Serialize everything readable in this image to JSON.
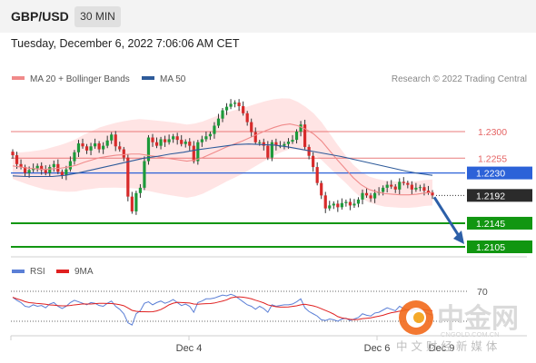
{
  "header": {
    "pair": "GBP/USD",
    "timeframe": "30 MIN",
    "datetime": "Tuesday, December 6, 2022 7:06:06 AM CET"
  },
  "legend": {
    "items": [
      {
        "label": "MA 20 + Bollinger Bands",
        "color": "#f08a8a"
      },
      {
        "label": "MA 50",
        "color": "#2e5b9a"
      }
    ],
    "credit": "Research © 2022 Trading Central"
  },
  "rsi_legend": {
    "items": [
      {
        "label": "RSI",
        "color": "#5b7fd6"
      },
      {
        "label": "9MA",
        "color": "#e02020"
      }
    ]
  },
  "watermark": {
    "brand": "中金网",
    "url": "CNGOLD.COM.CN",
    "slogan": "中 文 财 经 新 媒 体"
  },
  "chart_data": [
    {
      "type": "candlestick",
      "ylim": [
        1.2087,
        1.2372
      ],
      "grid": false,
      "x_ticks": [
        "Dec 4",
        "Dec 6",
        "Dec 9"
      ],
      "levels": [
        {
          "value": 1.23,
          "label": "1.2300",
          "kind": "resistance",
          "color": "#e56464"
        },
        {
          "value": 1.2255,
          "label": "1.2255",
          "kind": "resistance",
          "color": "#e56464"
        },
        {
          "value": 1.223,
          "label": "1.2230",
          "kind": "pivot",
          "color": "#2c62d8"
        },
        {
          "value": 1.2192,
          "label": "1.2192",
          "kind": "last",
          "color": "#2b2b2b"
        },
        {
          "value": 1.2145,
          "label": "1.2145",
          "kind": "support",
          "color": "#119611"
        },
        {
          "value": 1.2105,
          "label": "1.2105",
          "kind": "support",
          "color": "#119611"
        }
      ],
      "forecast_arrow": {
        "from": 1.2192,
        "to": 1.2105
      },
      "candles_close": [
        1.226,
        1.2245,
        1.224,
        1.223,
        1.2235,
        1.2238,
        1.2242,
        1.2235,
        1.223,
        1.224,
        1.2245,
        1.2232,
        1.2226,
        1.2236,
        1.225,
        1.2265,
        1.228,
        1.2275,
        1.2268,
        1.2275,
        1.228,
        1.227,
        1.2276,
        1.2285,
        1.2295,
        1.2275,
        1.227,
        1.2256,
        1.219,
        1.2165,
        1.2196,
        1.2205,
        1.225,
        1.229,
        1.2282,
        1.2276,
        1.2287,
        1.2282,
        1.2287,
        1.2292,
        1.2286,
        1.2279,
        1.2283,
        1.2276,
        1.225,
        1.2282,
        1.2287,
        1.2292,
        1.2296,
        1.231,
        1.2322,
        1.2336,
        1.2342,
        1.2347,
        1.2349,
        1.2343,
        1.2331,
        1.2316,
        1.2299,
        1.2282,
        1.2282,
        1.2276,
        1.2256,
        1.2282,
        1.2276,
        1.2276,
        1.2279,
        1.2283,
        1.2286,
        1.23,
        1.2312,
        1.2274,
        1.2259,
        1.224,
        1.2213,
        1.2192,
        1.217,
        1.2175,
        1.2178,
        1.2172,
        1.2179,
        1.2181,
        1.2175,
        1.2178,
        1.2185,
        1.2196,
        1.2192,
        1.2187,
        1.2196,
        1.2198,
        1.2205,
        1.221,
        1.2207,
        1.2202,
        1.2215,
        1.2213,
        1.221,
        1.2202,
        1.2205,
        1.2206,
        1.22,
        1.2197,
        1.2192
      ],
      "ma20": [
        1.2242,
        1.224,
        1.2238,
        1.2237,
        1.2236,
        1.2237,
        1.2238,
        1.224,
        1.2243,
        1.2248,
        1.2252,
        1.2256,
        1.2258,
        1.226,
        1.2261,
        1.2262,
        1.2262,
        1.226,
        1.2258,
        1.2256,
        1.2254,
        1.2252,
        1.225,
        1.2252,
        1.2256,
        1.2262,
        1.2268,
        1.2274,
        1.2279,
        1.2284,
        1.229,
        1.2296,
        1.2302,
        1.2307,
        1.2311,
        1.2313,
        1.231,
        1.2304,
        1.2296,
        1.2284,
        1.2268,
        1.2252,
        1.2237,
        1.2222,
        1.221,
        1.2202,
        1.2198,
        1.2195,
        1.2194,
        1.2193,
        1.2193,
        1.2194,
        1.2196,
        1.2197
      ],
      "ma50": [
        1.2225,
        1.2224,
        1.2224,
        1.2224,
        1.2226,
        1.223,
        1.2235,
        1.224,
        1.2245,
        1.225,
        1.2255,
        1.2258,
        1.2262,
        1.2265,
        1.2269,
        1.2272,
        1.2275,
        1.2278,
        1.2279,
        1.2278,
        1.2277,
        1.2274,
        1.227,
        1.2266,
        1.2262,
        1.2258,
        1.2253,
        1.2248,
        1.2243,
        1.2238,
        1.2233,
        1.2229,
        1.2226
      ],
      "rsi": [
        62,
        58,
        55,
        50,
        49,
        52,
        50,
        51,
        48,
        53,
        55,
        50,
        47,
        50,
        55,
        58,
        56,
        54,
        52,
        55,
        54,
        51,
        50,
        54,
        57,
        50,
        46,
        40,
        28,
        25,
        40,
        44,
        54,
        56,
        52,
        55,
        57,
        54,
        56,
        59,
        55,
        51,
        53,
        50,
        42,
        55,
        57,
        60,
        60,
        61,
        63,
        65,
        64,
        66,
        64,
        60,
        56,
        52,
        50,
        46,
        50,
        47,
        42,
        52,
        50,
        51,
        52,
        52,
        53,
        56,
        60,
        48,
        43,
        40,
        37,
        32,
        31,
        33,
        32,
        30,
        33,
        34,
        31,
        33,
        35,
        40,
        38,
        37,
        41,
        42,
        45,
        48,
        46,
        44,
        50,
        47,
        45,
        43,
        46,
        46,
        42,
        40,
        38
      ]
    }
  ]
}
